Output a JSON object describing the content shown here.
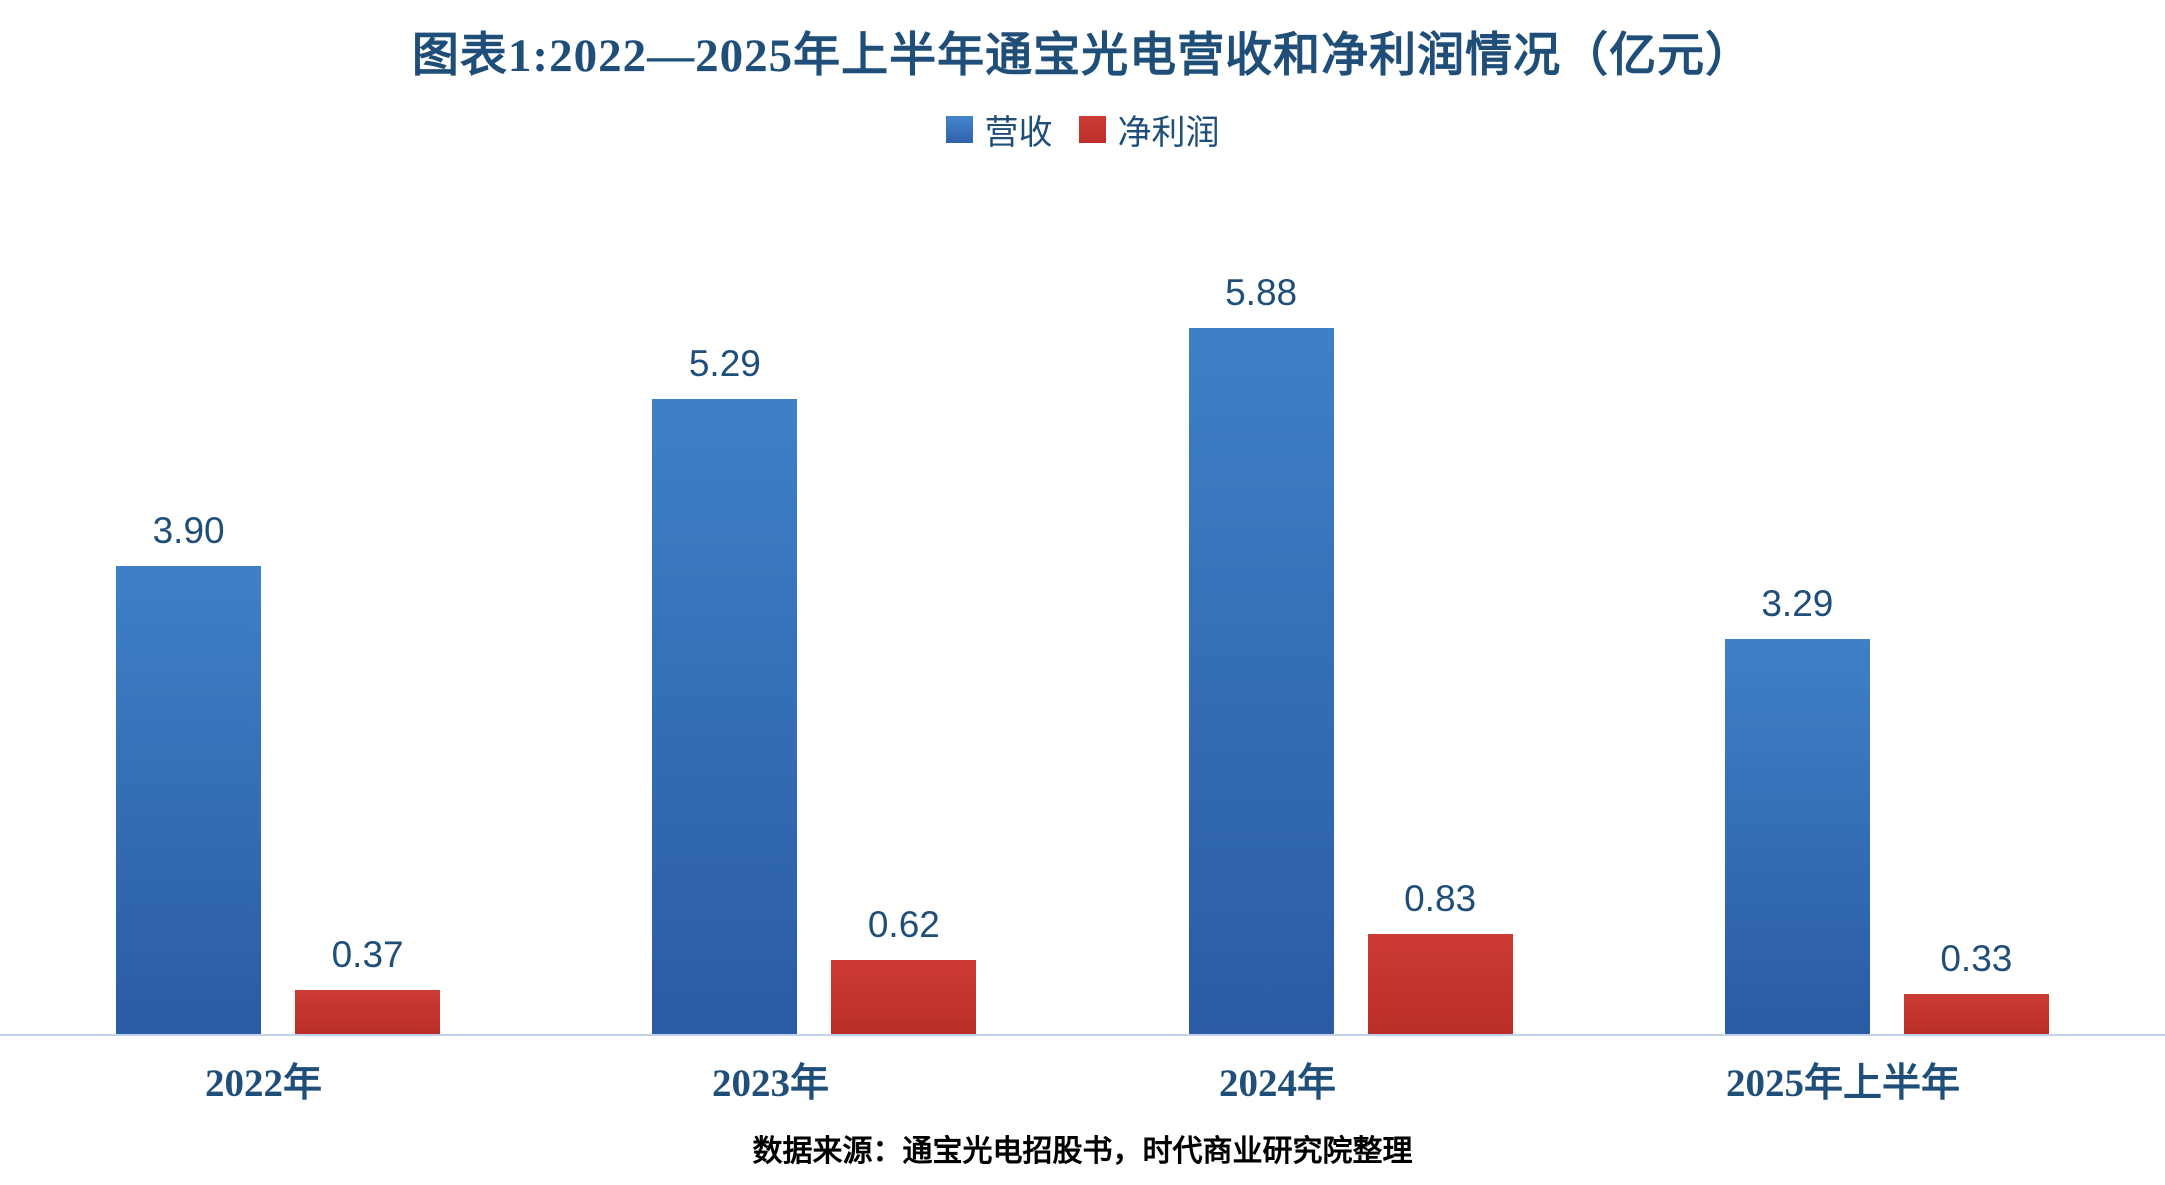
{
  "chart_data": {
    "type": "bar",
    "title": "图表1:2022—2025年上半年通宝光电营收和净利润情况（亿元）",
    "categories": [
      "2022年",
      "2023年",
      "2024年",
      "2025年上半年"
    ],
    "series": [
      {
        "name": "营收",
        "values": [
          3.9,
          5.29,
          5.88,
          3.29
        ],
        "color_top": "#3E80C8",
        "color_bottom": "#2A5BA4"
      },
      {
        "name": "净利润",
        "values": [
          0.37,
          0.62,
          0.83,
          0.33
        ],
        "color_top": "#CE3B35",
        "color_bottom": "#B92E29"
      }
    ],
    "value_label_format": "0.00",
    "ylim": [
      0,
      7.3
    ],
    "grid": false,
    "legend_position": "top-center",
    "axis_line_color": "#C3D2E8",
    "label_text_color": "#1F4E79",
    "source": "数据来源：通宝光电招股书，时代商业研究院整理"
  }
}
